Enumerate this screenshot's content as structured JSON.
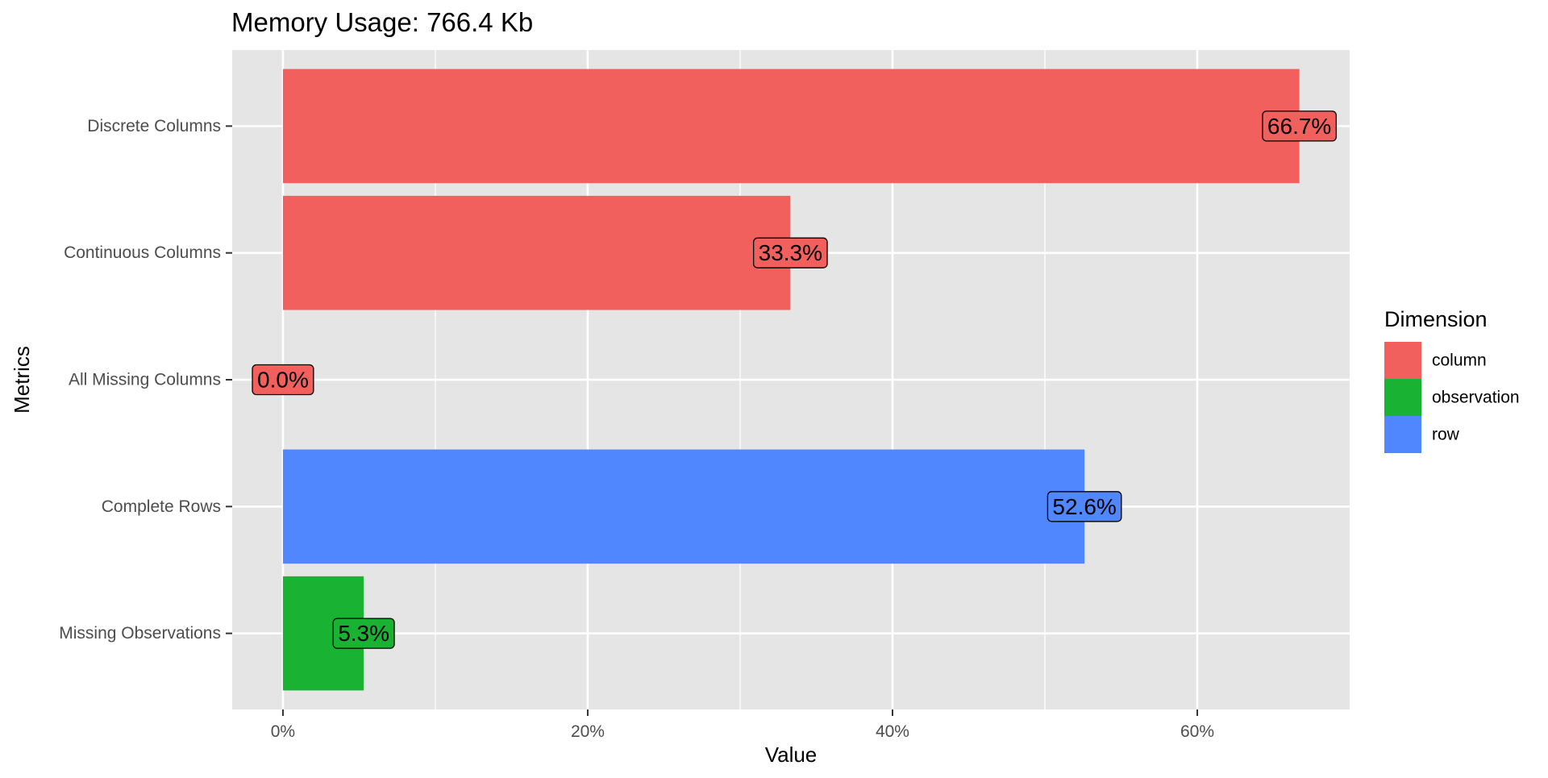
{
  "chart_data": {
    "type": "bar",
    "orientation": "horizontal",
    "title": "Memory Usage: 766.4 Kb",
    "xlabel": "Value",
    "ylabel": "Metrics",
    "xlim": [
      -3.33,
      70.0
    ],
    "x_ticks": [
      0,
      20,
      40,
      60
    ],
    "x_tick_labels": [
      "0%",
      "20%",
      "40%",
      "60%"
    ],
    "grid": true,
    "categories": [
      "Discrete Columns",
      "Continuous Columns",
      "All Missing Columns",
      "Complete Rows",
      "Missing Observations"
    ],
    "values": [
      66.7,
      33.3,
      0.0,
      52.6,
      5.3
    ],
    "value_labels": [
      "66.7%",
      "33.3%",
      "0.0%",
      "52.6%",
      "5.3%"
    ],
    "groups": [
      "column",
      "column",
      "column",
      "row",
      "observation"
    ],
    "legend": {
      "title": "Dimension",
      "position": "right",
      "items": [
        {
          "name": "column",
          "color": "#F2605E"
        },
        {
          "name": "observation",
          "color": "#1AB232"
        },
        {
          "name": "row",
          "color": "#5086FE"
        }
      ]
    },
    "colors": {
      "panel_background": "#E5E5E5",
      "grid": "#FFFFFF"
    }
  }
}
